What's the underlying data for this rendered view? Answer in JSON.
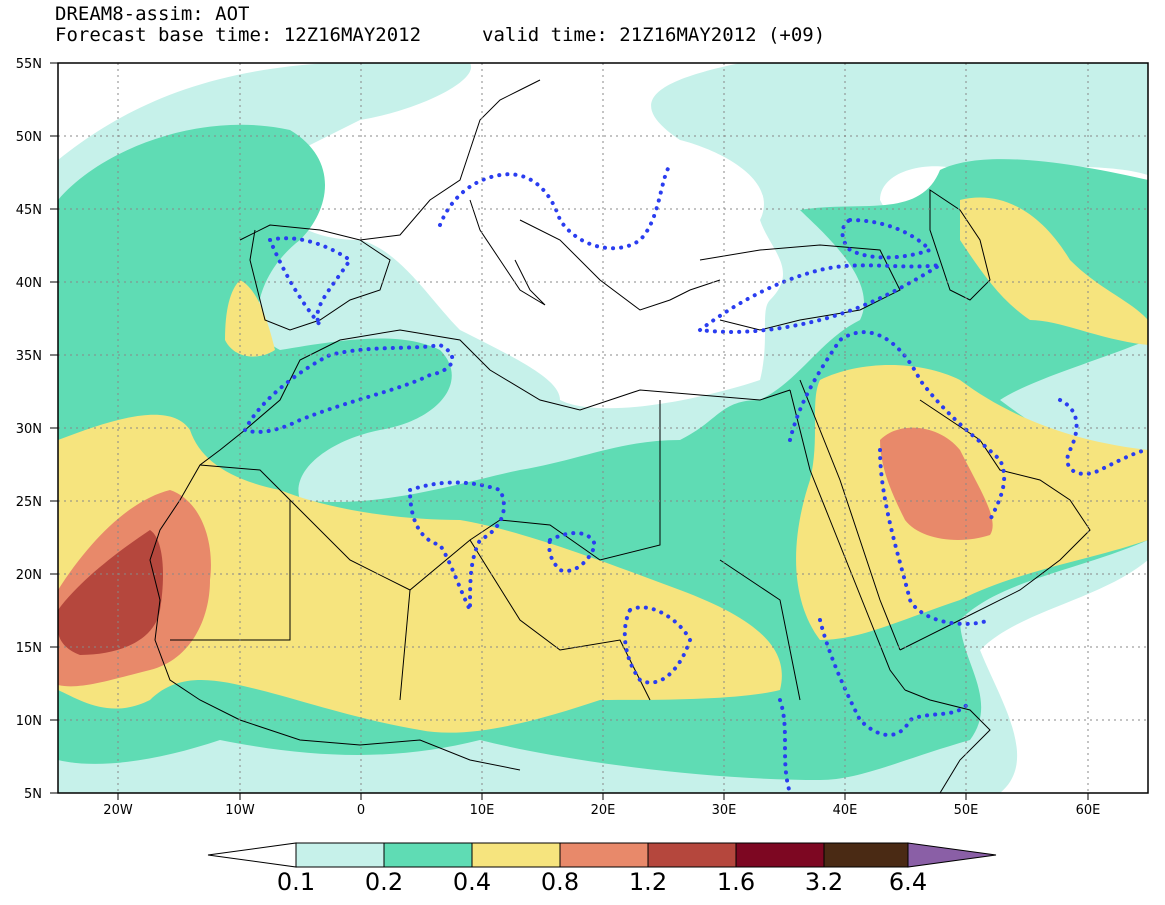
{
  "header": {
    "model_title": "DREAM8-assim: AOT",
    "base_time": "Forecast base time: 12Z16MAY2012",
    "valid_time": "valid time: 21Z16MAY2012 (+09)"
  },
  "map": {
    "lon_range": [
      -25,
      65
    ],
    "lat_range": [
      5,
      55
    ],
    "lat_ticks": [
      "5N",
      "10N",
      "15N",
      "20N",
      "25N",
      "30N",
      "35N",
      "40N",
      "45N",
      "50N",
      "55N"
    ],
    "lon_ticks": [
      "20W",
      "10W",
      "0",
      "10E",
      "20E",
      "30E",
      "40E",
      "50E",
      "60E"
    ],
    "grid": "dotted"
  },
  "colorbar": {
    "levels": [
      "0.1",
      "0.2",
      "0.4",
      "0.8",
      "1.2",
      "1.6",
      "3.2",
      "6.4"
    ],
    "colors": [
      "#ffffff",
      "#c6f1ea",
      "#5fdcb4",
      "#f6e47e",
      "#e8896a",
      "#b5473d",
      "#7d0722",
      "#4a2a14",
      "#8a5fa6"
    ]
  }
}
